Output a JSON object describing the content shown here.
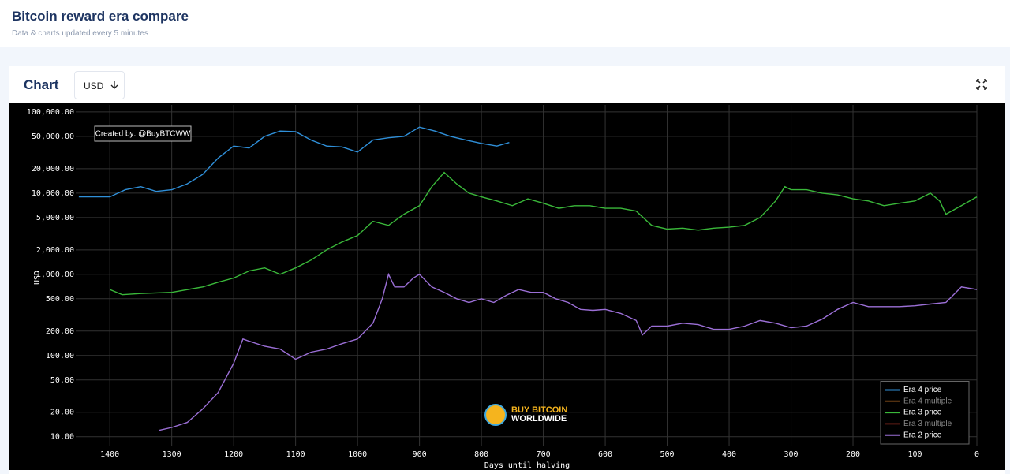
{
  "header": {
    "title": "Bitcoin reward era compare",
    "subtitle": "Data & charts updated every 5 minutes"
  },
  "card": {
    "title": "Chart",
    "currency": "USD"
  },
  "chart_data": {
    "type": "line",
    "annotation": "Created by: @BuyBTCWW",
    "watermark": [
      "BUY BITCOIN",
      "WORLDWIDE"
    ],
    "x_label": "Days until halving",
    "y_label": "USD",
    "log_y": true,
    "grid": true,
    "legend": "bottom-right",
    "xlim": [
      1455,
      0
    ],
    "xticks": [
      1400,
      1300,
      1200,
      1100,
      1000,
      900,
      800,
      700,
      600,
      500,
      400,
      300,
      200,
      100,
      0
    ],
    "ylim": [
      7.6,
      122000
    ],
    "yticks": [
      {
        "value": 10,
        "label": "10.00"
      },
      {
        "value": 20,
        "label": "20.00"
      },
      {
        "value": 50,
        "label": "50.00"
      },
      {
        "value": 100,
        "label": "100.00"
      },
      {
        "value": 200,
        "label": "200.00"
      },
      {
        "value": 500,
        "label": "500.00"
      },
      {
        "value": 1000,
        "label": "1,000.00"
      },
      {
        "value": 2000,
        "label": "2,000.00"
      },
      {
        "value": 5000,
        "label": "5,000.00"
      },
      {
        "value": 10000,
        "label": "10,000.00"
      },
      {
        "value": 20000,
        "label": "20,000.00"
      },
      {
        "value": 50000,
        "label": "50,000.00"
      },
      {
        "value": 100000,
        "label": "100,000.00"
      }
    ],
    "series": [
      {
        "name": "Era 4 price",
        "color": "#2f8fd8",
        "visible": true,
        "x": [
          1450,
          1400,
          1375,
          1350,
          1325,
          1300,
          1275,
          1250,
          1225,
          1200,
          1175,
          1150,
          1125,
          1100,
          1075,
          1050,
          1025,
          1000,
          975,
          950,
          925,
          900,
          875,
          850,
          825,
          800,
          775,
          755
        ],
        "values": [
          9000,
          9000,
          11000,
          12000,
          10500,
          11000,
          13000,
          17000,
          27000,
          38000,
          36000,
          50000,
          58000,
          57000,
          45000,
          38000,
          37000,
          32000,
          45000,
          48000,
          50000,
          65000,
          58000,
          50000,
          45000,
          41000,
          38000,
          42000
        ]
      },
      {
        "name": "Era 4 multiple",
        "color": "#d9822b",
        "visible": false
      },
      {
        "name": "Era 3 price",
        "color": "#3ab83a",
        "visible": true,
        "x": [
          1400,
          1380,
          1350,
          1300,
          1250,
          1225,
          1200,
          1175,
          1150,
          1125,
          1100,
          1075,
          1050,
          1025,
          1000,
          975,
          950,
          925,
          900,
          880,
          860,
          840,
          820,
          800,
          775,
          750,
          725,
          700,
          675,
          650,
          625,
          600,
          575,
          550,
          525,
          500,
          475,
          450,
          425,
          400,
          375,
          350,
          325,
          310,
          300,
          275,
          250,
          225,
          200,
          175,
          150,
          125,
          100,
          75,
          60,
          50,
          25,
          0
        ],
        "values": [
          650,
          560,
          580,
          600,
          700,
          800,
          900,
          1100,
          1200,
          1000,
          1200,
          1500,
          2000,
          2500,
          3000,
          4500,
          4000,
          5500,
          7000,
          12000,
          18000,
          13000,
          10000,
          9000,
          8000,
          7000,
          8500,
          7500,
          6500,
          7000,
          7000,
          6500,
          6500,
          6000,
          4000,
          3600,
          3700,
          3500,
          3700,
          3800,
          4000,
          5000,
          8000,
          12000,
          11000,
          11000,
          10000,
          9500,
          8500,
          8000,
          7000,
          7500,
          8000,
          10000,
          8000,
          5500,
          7000,
          9000
        ]
      },
      {
        "name": "Era 3 multiple",
        "color": "#c0392b",
        "visible": false
      },
      {
        "name": "Era 2 price",
        "color": "#9b6fd6",
        "visible": true,
        "x": [
          1320,
          1300,
          1275,
          1250,
          1225,
          1200,
          1185,
          1175,
          1150,
          1125,
          1100,
          1075,
          1050,
          1025,
          1000,
          975,
          960,
          950,
          940,
          925,
          910,
          900,
          880,
          860,
          840,
          820,
          800,
          780,
          760,
          740,
          720,
          700,
          680,
          660,
          640,
          620,
          600,
          575,
          550,
          540,
          525,
          500,
          475,
          450,
          425,
          400,
          375,
          350,
          325,
          300,
          275,
          250,
          225,
          200,
          175,
          150,
          125,
          100,
          75,
          50,
          25,
          0
        ],
        "values": [
          12,
          13,
          15,
          22,
          35,
          80,
          160,
          150,
          130,
          120,
          90,
          110,
          120,
          140,
          160,
          250,
          500,
          1000,
          700,
          700,
          900,
          1000,
          700,
          600,
          500,
          450,
          500,
          450,
          550,
          650,
          600,
          600,
          500,
          450,
          370,
          360,
          370,
          330,
          270,
          180,
          230,
          230,
          250,
          240,
          210,
          210,
          230,
          270,
          250,
          220,
          230,
          280,
          370,
          450,
          400,
          400,
          400,
          410,
          430,
          450,
          700,
          650
        ]
      }
    ]
  }
}
